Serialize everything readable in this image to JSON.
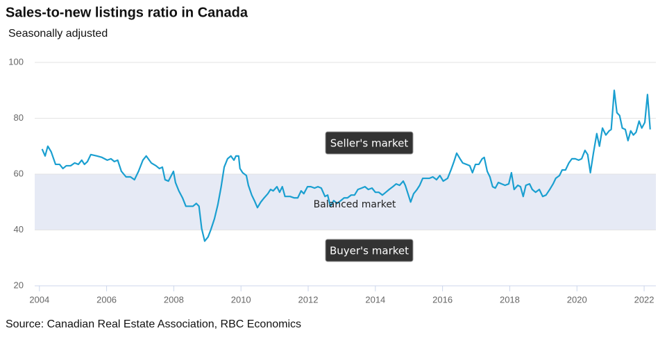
{
  "chart_data": {
    "type": "line",
    "title": "Sales-to-new listings ratio in Canada",
    "subtitle": "Seasonally adjusted",
    "source": "Source: Canadian Real Estate Association, RBC Economics",
    "band": [
      40,
      60
    ],
    "annotations": {
      "seller": "Seller's market",
      "balanced": "Balanced market",
      "buyer": "Buyer's market"
    },
    "xlim": [
      2003.86,
      2022.35
    ],
    "xticks": [
      2004,
      2006,
      2008,
      2010,
      2012,
      2014,
      2016,
      2018,
      2020,
      2022
    ],
    "ylim": [
      20,
      100
    ],
    "yticks": [
      20,
      40,
      60,
      80,
      100
    ],
    "grid": true,
    "series": [
      {
        "name": "Sales-to-new listings ratio",
        "color": "#1a9fd0",
        "x": [
          2004.08,
          2004.17,
          2004.25,
          2004.35,
          2004.48,
          2004.6,
          2004.7,
          2004.8,
          2004.93,
          2005.05,
          2005.16,
          2005.26,
          2005.34,
          2005.43,
          2005.53,
          2005.71,
          2005.86,
          2006.02,
          2006.13,
          2006.23,
          2006.33,
          2006.44,
          2006.58,
          2006.71,
          2006.83,
          2006.95,
          2007.08,
          2007.18,
          2007.33,
          2007.47,
          2007.57,
          2007.66,
          2007.74,
          2007.84,
          2007.99,
          2008.05,
          2008.15,
          2008.26,
          2008.36,
          2008.46,
          2008.57,
          2008.67,
          2008.75,
          2008.83,
          2008.92,
          2009.02,
          2009.1,
          2009.21,
          2009.31,
          2009.41,
          2009.5,
          2009.6,
          2009.7,
          2009.79,
          2009.85,
          2009.93,
          2009.97,
          2010.05,
          2010.16,
          2010.22,
          2010.32,
          2010.4,
          2010.49,
          2010.59,
          2010.69,
          2010.8,
          2010.88,
          2010.96,
          2011.07,
          2011.15,
          2011.23,
          2011.31,
          2011.46,
          2011.58,
          2011.69,
          2011.79,
          2011.87,
          2011.98,
          2012.08,
          2012.19,
          2012.29,
          2012.39,
          2012.5,
          2012.58,
          2012.66,
          2012.76,
          2012.86,
          2012.97,
          2013.07,
          2013.17,
          2013.28,
          2013.38,
          2013.48,
          2013.59,
          2013.69,
          2013.79,
          2013.9,
          2014.0,
          2014.1,
          2014.21,
          2014.31,
          2014.41,
          2014.52,
          2014.62,
          2014.72,
          2014.83,
          2014.89,
          2014.97,
          2015.05,
          2015.14,
          2015.24,
          2015.32,
          2015.41,
          2015.51,
          2015.61,
          2015.71,
          2015.82,
          2015.92,
          2016.02,
          2016.15,
          2016.25,
          2016.34,
          2016.42,
          2016.52,
          2016.6,
          2016.71,
          2016.81,
          2016.89,
          2016.98,
          2017.08,
          2017.18,
          2017.24,
          2017.33,
          2017.41,
          2017.49,
          2017.57,
          2017.66,
          2017.76,
          2017.86,
          2017.97,
          2018.05,
          2018.13,
          2018.24,
          2018.32,
          2018.4,
          2018.48,
          2018.59,
          2018.67,
          2018.77,
          2018.88,
          2018.98,
          2019.08,
          2019.19,
          2019.29,
          2019.37,
          2019.48,
          2019.56,
          2019.66,
          2019.76,
          2019.85,
          2019.95,
          2020.05,
          2020.14,
          2020.24,
          2020.32,
          2020.4,
          2020.49,
          2020.59,
          2020.67,
          2020.76,
          2020.86,
          2020.96,
          2021.02,
          2021.11,
          2021.19,
          2021.27,
          2021.35,
          2021.44,
          2021.52,
          2021.6,
          2021.68,
          2021.76,
          2021.85,
          2021.93,
          2022.02,
          2022.1,
          2022.18
        ],
        "values": [
          69,
          66.5,
          70,
          68,
          63.5,
          63.5,
          62,
          63,
          63,
          64,
          63.5,
          65,
          63.5,
          64.5,
          67,
          66.5,
          66,
          65,
          65.5,
          64.5,
          65,
          61,
          59,
          59,
          58,
          61,
          65,
          66.5,
          64,
          63,
          62,
          62.5,
          58,
          57.5,
          61,
          57,
          54,
          51.5,
          48.5,
          48.5,
          48.5,
          49.5,
          48.5,
          40.5,
          36,
          37.5,
          40,
          44,
          49,
          55.5,
          62.5,
          65.5,
          66.5,
          65,
          66.5,
          66.5,
          62,
          60.5,
          59.5,
          56,
          52.5,
          50.5,
          48,
          50,
          51.5,
          53,
          54.5,
          54,
          55.5,
          53.5,
          55.5,
          52,
          52,
          51.5,
          51.5,
          54,
          53,
          55.5,
          55.5,
          55,
          55.5,
          55,
          52,
          52.5,
          48.5,
          50.5,
          49.5,
          50.5,
          51.5,
          51.5,
          52.5,
          52.5,
          54.5,
          55,
          55.5,
          54.5,
          55,
          53.5,
          53.5,
          52.5,
          53.5,
          54.5,
          55.5,
          56.5,
          56,
          57.5,
          56,
          53,
          50,
          53,
          54.5,
          56,
          58.5,
          58.5,
          58.5,
          59,
          58,
          59.5,
          57.5,
          58.5,
          61.5,
          64.5,
          67.5,
          65.5,
          64,
          63.5,
          63,
          60.5,
          63.5,
          63.5,
          65.5,
          66,
          61,
          59,
          55.5,
          55,
          57,
          56.5,
          56,
          56.5,
          60.5,
          54.5,
          56,
          55.5,
          52,
          56,
          56.5,
          54.5,
          53.5,
          54.5,
          52,
          52.5,
          54.5,
          56.5,
          58.5,
          59.5,
          61.5,
          61.5,
          64,
          65.5,
          65.5,
          65,
          65.5,
          68.5,
          67,
          60.5,
          67.5,
          74.5,
          70,
          76.5,
          74,
          75.5,
          76,
          90,
          82,
          81,
          76.5,
          76,
          72,
          75.5,
          74,
          75,
          79,
          76.5,
          78.5,
          88.5,
          76
        ]
      }
    ]
  }
}
